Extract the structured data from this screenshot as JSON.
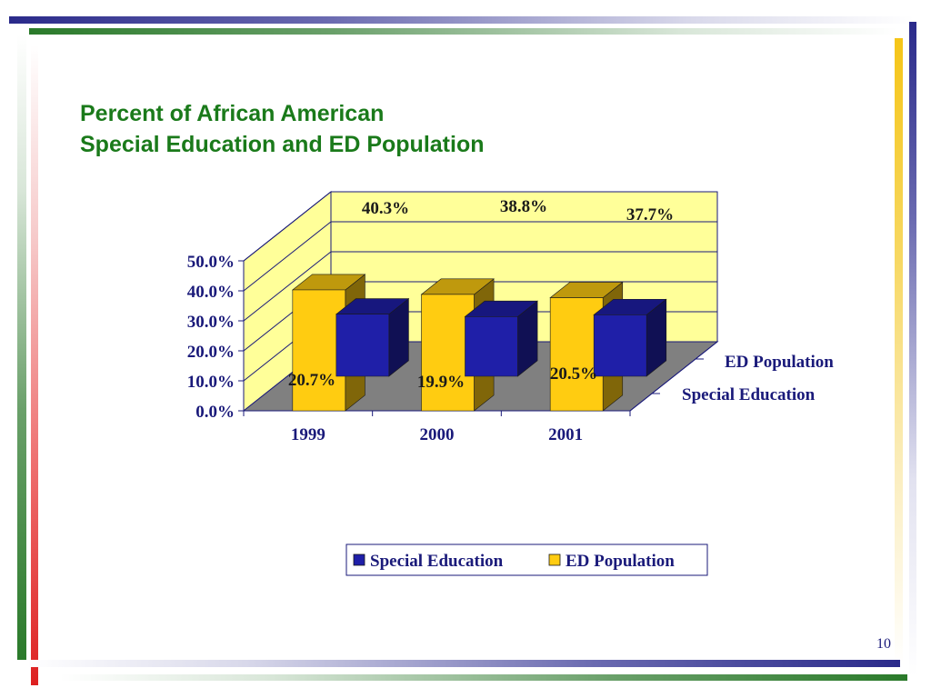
{
  "slide": {
    "title_line1": "Percent of African American",
    "title_line2": "Special Education and ED Population",
    "page_number": "10"
  },
  "colors": {
    "title": "#1a7a1a",
    "navy": "#2a2a8a",
    "special_education": "#1f1fa8",
    "ed_population": "#ffcc11",
    "wall": "#ffff99",
    "floor": "#808080"
  },
  "chart_data": {
    "type": "bar",
    "style": "3d-clustered-depth",
    "title": "",
    "xlabel": "",
    "ylabel": "",
    "categories": [
      "1999",
      "2000",
      "2001"
    ],
    "series": [
      {
        "name": "Special Education",
        "color": "#1f1fa8",
        "values": [
          20.7,
          19.9,
          20.5
        ],
        "labels": [
          "20.7%",
          "19.9%",
          "20.5%"
        ]
      },
      {
        "name": "ED Population",
        "color": "#ffcc11",
        "values": [
          40.3,
          38.8,
          37.7
        ],
        "labels": [
          "40.3%",
          "38.8%",
          "37.7%"
        ]
      }
    ],
    "ylim": [
      0,
      50
    ],
    "yticks": [
      "0.0%",
      "10.0%",
      "20.0%",
      "30.0%",
      "40.0%",
      "50.0%"
    ],
    "depth_axis_labels": [
      "ED Population",
      "Special Education"
    ],
    "gridlines": true,
    "legend": {
      "position": "bottom",
      "entries": [
        "Special Education",
        "ED Population"
      ]
    }
  }
}
